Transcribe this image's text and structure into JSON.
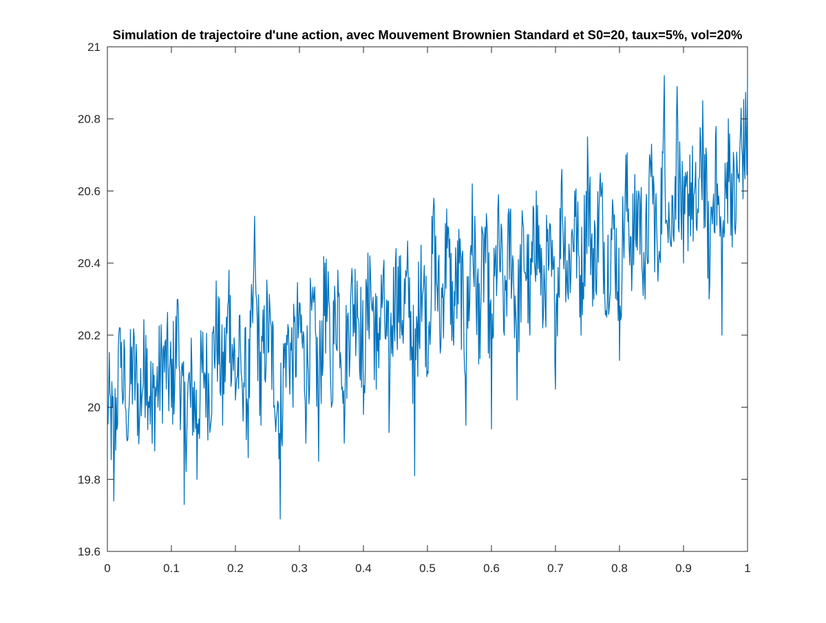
{
  "chart_data": {
    "type": "line",
    "title": "Simulation de trajectoire d'une action, avec Mouvement Brownien Standard et S0=20, taux=5%, vol=20%",
    "xlabel": "",
    "ylabel": "",
    "xlim": [
      0,
      1
    ],
    "ylim": [
      19.6,
      21
    ],
    "x_ticks": [
      0,
      0.1,
      0.2,
      0.3,
      0.4,
      0.5,
      0.6,
      0.7,
      0.8,
      0.9,
      1
    ],
    "x_tick_labels": [
      "0",
      "0.1",
      "0.2",
      "0.3",
      "0.4",
      "0.5",
      "0.6",
      "0.7",
      "0.8",
      "0.9",
      "1"
    ],
    "y_ticks": [
      19.6,
      19.8,
      20,
      20.2,
      20.4,
      20.6,
      20.8,
      21
    ],
    "y_tick_labels": [
      "19.6",
      "19.8",
      "20",
      "20.2",
      "20.4",
      "20.6",
      "20.8",
      "21"
    ],
    "grid": false,
    "legend": "none",
    "line_color": "#0072BD",
    "x": [
      0,
      0.01,
      0.02,
      0.03,
      0.04,
      0.05,
      0.06,
      0.07,
      0.08,
      0.09,
      0.1,
      0.11,
      0.12,
      0.13,
      0.14,
      0.15,
      0.16,
      0.17,
      0.18,
      0.19,
      0.2,
      0.21,
      0.22,
      0.23,
      0.24,
      0.25,
      0.26,
      0.27,
      0.28,
      0.29,
      0.3,
      0.31,
      0.32,
      0.33,
      0.34,
      0.35,
      0.36,
      0.37,
      0.38,
      0.39,
      0.4,
      0.41,
      0.42,
      0.43,
      0.44,
      0.45,
      0.46,
      0.47,
      0.48,
      0.49,
      0.5,
      0.51,
      0.52,
      0.53,
      0.54,
      0.55,
      0.56,
      0.57,
      0.58,
      0.59,
      0.6,
      0.61,
      0.62,
      0.63,
      0.64,
      0.65,
      0.66,
      0.67,
      0.68,
      0.69,
      0.7,
      0.71,
      0.72,
      0.73,
      0.74,
      0.75,
      0.76,
      0.77,
      0.78,
      0.79,
      0.8,
      0.81,
      0.82,
      0.83,
      0.84,
      0.85,
      0.86,
      0.87,
      0.88,
      0.89,
      0.9,
      0.91,
      0.92,
      0.93,
      0.94,
      0.95,
      0.96,
      0.97,
      0.98,
      0.99,
      1
    ],
    "y": [
      20.0,
      19.74,
      20.22,
      19.92,
      20.15,
      19.95,
      20.2,
      19.9,
      20.05,
      20.18,
      20.0,
      20.3,
      19.73,
      20.0,
      19.8,
      20.1,
      19.93,
      20.35,
      19.95,
      20.38,
      20.02,
      20.08,
      19.86,
      20.53,
      19.95,
      20.3,
      20.0,
      19.69,
      20.2,
      20.0,
      20.29,
      19.9,
      20.3,
      19.85,
      20.4,
      20.0,
      20.38,
      19.9,
      20.3,
      20.35,
      19.98,
      20.42,
      20.05,
      20.3,
      19.93,
      20.4,
      20.2,
      20.36,
      19.81,
      20.45,
      20.1,
      20.58,
      20.15,
      20.55,
      20.2,
      20.4,
      19.95,
      20.62,
      20.12,
      20.5,
      19.94,
      20.55,
      20.2,
      20.55,
      20.02,
      20.5,
      20.2,
      20.6,
      20.22,
      20.4,
      20.05,
      20.66,
      20.3,
      20.6,
      20.2,
      20.75,
      20.3,
      20.65,
      20.25,
      20.55,
      20.13,
      20.7,
      20.4,
      20.6,
      20.3,
      20.73,
      20.35,
      20.92,
      20.45,
      20.89,
      20.4,
      20.7,
      20.5,
      20.85,
      20.3,
      20.75,
      20.2,
      20.8,
      20.5,
      20.83,
      20.92
    ]
  }
}
